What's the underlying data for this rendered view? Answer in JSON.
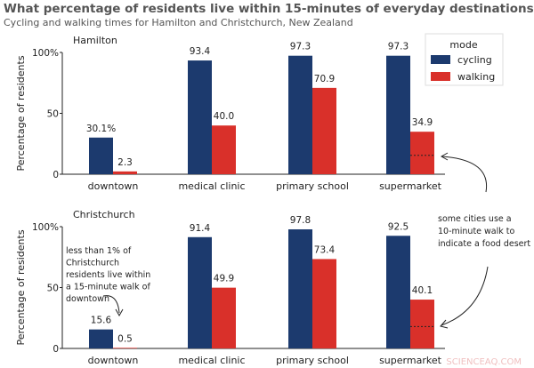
{
  "title": "What percentage of residents live within 15-minutes of everyday destinations",
  "subtitle": "Cycling and walking times for Hamilton and Christchurch, New Zealand",
  "colors": {
    "cycling": "#1c3a6e",
    "walking": "#d9302a",
    "text": "#222222",
    "title": "#555555"
  },
  "legend": {
    "title": "mode",
    "items": [
      "cycling",
      "walking"
    ],
    "position": "top-right"
  },
  "watermark": "SCIENCEAQ.COM",
  "chart_data": [
    {
      "type": "bar",
      "title": "Hamilton",
      "ylabel": "Percentage of residents",
      "ylim": [
        0,
        100
      ],
      "yticks": [
        "0",
        "50",
        "100%"
      ],
      "categories": [
        "downtown",
        "medical clinic",
        "primary school",
        "supermarket"
      ],
      "series": [
        {
          "name": "cycling",
          "values": [
            30.1,
            93.4,
            97.3,
            97.3
          ],
          "labels": [
            "30.1%",
            "93.4",
            "97.3",
            "97.3"
          ]
        },
        {
          "name": "walking",
          "values": [
            2.3,
            40.0,
            70.9,
            34.9
          ],
          "labels": [
            "2.3",
            "40.0",
            "70.9",
            "34.9"
          ]
        }
      ],
      "ten_minute_walk_supermarket": 15.5
    },
    {
      "type": "bar",
      "title": "Christchurch",
      "ylabel": "Percentage of residents",
      "ylim": [
        0,
        100
      ],
      "yticks": [
        "0",
        "50",
        "100%"
      ],
      "categories": [
        "downtown",
        "medical clinic",
        "primary school",
        "supermarket"
      ],
      "series": [
        {
          "name": "cycling",
          "values": [
            15.6,
            91.4,
            97.8,
            92.5
          ],
          "labels": [
            "15.6",
            "91.4",
            "97.8",
            "92.5"
          ]
        },
        {
          "name": "walking",
          "values": [
            0.5,
            49.9,
            73.4,
            40.1
          ],
          "labels": [
            "0.5",
            "49.9",
            "73.4",
            "40.1"
          ]
        }
      ],
      "ten_minute_walk_supermarket": 18
    }
  ],
  "annotations": {
    "downtown_note": [
      "less than 1% of",
      "Christchurch",
      "residents live within",
      "a 15-minute walk of",
      "downtown"
    ],
    "food_desert_note": [
      "some cities use a",
      "10-minute walk to",
      "indicate a food desert"
    ]
  }
}
